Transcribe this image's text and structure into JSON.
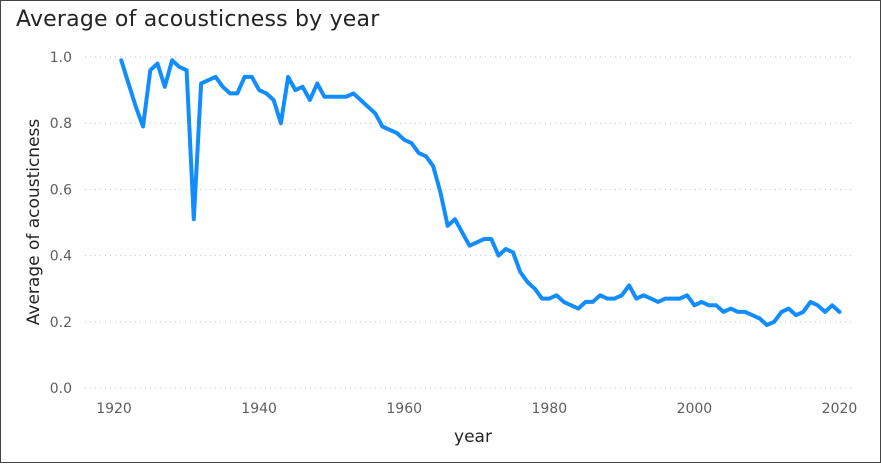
{
  "chart_data": {
    "type": "line",
    "title": "Average of acousticness by year",
    "xlabel": "year",
    "ylabel": "Average of acousticness",
    "xlim": [
      1916,
      2022
    ],
    "ylim": [
      0,
      1
    ],
    "x_ticks": [
      "1920",
      "1940",
      "1960",
      "1980",
      "2000",
      "2020"
    ],
    "y_ticks": [
      "0.0",
      "0.2",
      "0.4",
      "0.6",
      "0.8",
      "1.0"
    ],
    "grid": "horizontal dotted",
    "legend": "none",
    "series_color": "#118DFF",
    "x": [
      1921,
      1922,
      1923,
      1924,
      1925,
      1926,
      1927,
      1928,
      1929,
      1930,
      1931,
      1932,
      1933,
      1934,
      1935,
      1936,
      1937,
      1938,
      1939,
      1940,
      1941,
      1942,
      1943,
      1944,
      1945,
      1946,
      1947,
      1948,
      1949,
      1950,
      1951,
      1952,
      1953,
      1954,
      1955,
      1956,
      1957,
      1958,
      1959,
      1960,
      1961,
      1962,
      1963,
      1964,
      1965,
      1966,
      1967,
      1968,
      1969,
      1970,
      1971,
      1972,
      1973,
      1974,
      1975,
      1976,
      1977,
      1978,
      1979,
      1980,
      1981,
      1982,
      1983,
      1984,
      1985,
      1986,
      1987,
      1988,
      1989,
      1990,
      1991,
      1992,
      1993,
      1994,
      1995,
      1996,
      1997,
      1998,
      1999,
      2000,
      2001,
      2002,
      2003,
      2004,
      2005,
      2006,
      2007,
      2008,
      2009,
      2010,
      2011,
      2012,
      2013,
      2014,
      2015,
      2016,
      2017,
      2018,
      2019,
      2020
    ],
    "values": [
      0.99,
      0.92,
      0.85,
      0.79,
      0.96,
      0.98,
      0.91,
      0.99,
      0.97,
      0.96,
      0.51,
      0.92,
      0.93,
      0.94,
      0.91,
      0.89,
      0.89,
      0.94,
      0.94,
      0.9,
      0.89,
      0.87,
      0.8,
      0.94,
      0.9,
      0.91,
      0.87,
      0.92,
      0.88,
      0.88,
      0.88,
      0.88,
      0.89,
      0.87,
      0.85,
      0.83,
      0.79,
      0.78,
      0.77,
      0.75,
      0.74,
      0.71,
      0.7,
      0.67,
      0.59,
      0.49,
      0.51,
      0.47,
      0.43,
      0.44,
      0.45,
      0.45,
      0.4,
      0.42,
      0.41,
      0.35,
      0.32,
      0.3,
      0.27,
      0.27,
      0.28,
      0.26,
      0.25,
      0.24,
      0.26,
      0.26,
      0.28,
      0.27,
      0.27,
      0.28,
      0.31,
      0.27,
      0.28,
      0.27,
      0.26,
      0.27,
      0.27,
      0.27,
      0.28,
      0.25,
      0.26,
      0.25,
      0.25,
      0.23,
      0.24,
      0.23,
      0.23,
      0.22,
      0.21,
      0.19,
      0.2,
      0.23,
      0.24,
      0.22,
      0.23,
      0.26,
      0.25,
      0.23,
      0.25,
      0.23
    ]
  }
}
